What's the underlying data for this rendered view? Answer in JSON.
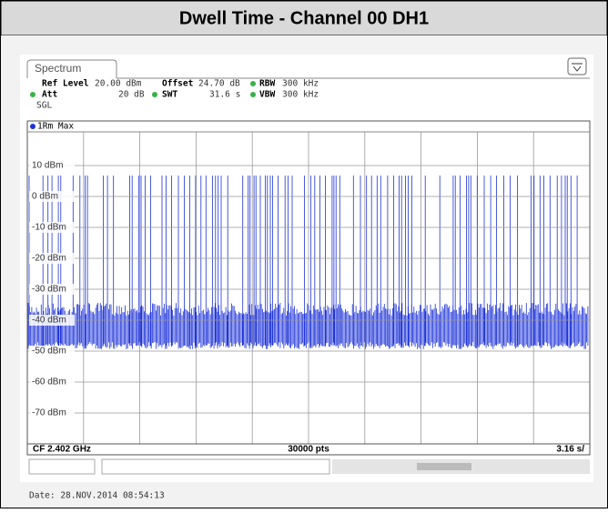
{
  "header": {
    "title": "Dwell Time - Channel 00 DH1"
  },
  "tab": "Spectrum",
  "settings": {
    "ref_level_label": "Ref Level",
    "ref_level": "20.00 dBm",
    "offset_label": "Offset",
    "offset": "24.70 dB",
    "rbw_label": "RBW",
    "rbw": "300 kHz",
    "att_label": "Att",
    "att": "20 dB",
    "swt_label": "SWT",
    "swt": "31.6 s",
    "vbw_label": "VBW",
    "vbw": "300 kHz",
    "mode": "SGL"
  },
  "chart_data": {
    "type": "line",
    "trace_label": "1Rm Max",
    "color": "#1f34d8",
    "ylim": [
      -80,
      20
    ],
    "yticks": [
      {
        "value": 10,
        "label": "10 dBm"
      },
      {
        "value": 0,
        "label": "0 dBm"
      },
      {
        "value": -10,
        "label": "-10 dBm"
      },
      {
        "value": -20,
        "label": "-20 dBm"
      },
      {
        "value": -30,
        "label": "-30 dBm"
      },
      {
        "value": -40,
        "label": "-40 dBm"
      },
      {
        "value": -50,
        "label": "-50 dBm"
      },
      {
        "value": -60,
        "label": "-60 dBm"
      },
      {
        "value": -70,
        "label": "-70 dBm"
      }
    ],
    "grid": true,
    "center_frequency": "CF 2.402 GHz",
    "points": "30000 pts",
    "span_per_div": "3.16 s/"
  },
  "footer": {
    "date": "Date: 28.NOV.2014  08:54:13"
  }
}
